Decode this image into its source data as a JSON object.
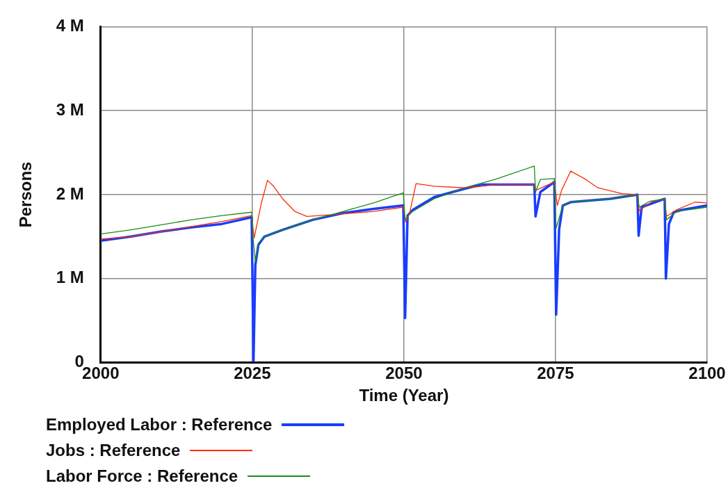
{
  "chart_data": {
    "type": "line",
    "xlabel": "Time (Year)",
    "ylabel": "Persons",
    "xlim": [
      2000,
      2100
    ],
    "xticks": [
      2000,
      2025,
      2050,
      2075,
      2100
    ],
    "ylim": [
      0,
      4000000
    ],
    "yticks": [
      0,
      {
        "value": 1000000,
        "label": "1 M"
      },
      {
        "value": 2000000,
        "label": "2 M"
      },
      {
        "value": 3000000,
        "label": "3 M"
      },
      {
        "value": 4000000,
        "label": "4 M"
      }
    ],
    "grid": true,
    "legend": "bottom",
    "series": [
      {
        "name": "Employed Labor : Reference",
        "color": "#1a3cff",
        "x": [
          2000,
          2005,
          2010,
          2015,
          2020,
          2024.9,
          2025.2,
          2025.5,
          2026,
          2027,
          2030,
          2035,
          2040,
          2045,
          2049.9,
          2050.2,
          2050.6,
          2051.5,
          2055,
          2060,
          2063,
          2071.5,
          2071.7,
          2072.5,
          2074.8,
          2075.1,
          2075.6,
          2076.2,
          2077.5,
          2084,
          2088.5,
          2088.7,
          2089.2,
          2093,
          2093.2,
          2093.7,
          2094.5,
          2096,
          2100
        ],
        "values": [
          1450000,
          1500000,
          1560000,
          1610000,
          1650000,
          1730000,
          20000,
          1160000,
          1400000,
          1500000,
          1580000,
          1700000,
          1780000,
          1830000,
          1870000,
          530000,
          1750000,
          1820000,
          1970000,
          2070000,
          2120000,
          2120000,
          1740000,
          2030000,
          2150000,
          570000,
          1590000,
          1870000,
          1910000,
          1950000,
          2000000,
          1510000,
          1850000,
          1950000,
          1000000,
          1650000,
          1790000,
          1820000,
          1870000
        ]
      },
      {
        "name": "Jobs : Reference",
        "color": "#ff2a00",
        "x": [
          2000,
          2005,
          2010,
          2015,
          2020,
          2024.9,
          2025.3,
          2026.5,
          2027.5,
          2028.5,
          2030,
          2032,
          2034,
          2040,
          2045,
          2049.9,
          2050.3,
          2051,
          2052,
          2055,
          2060,
          2063,
          2065,
          2071.5,
          2071.7,
          2074.8,
          2075.3,
          2076,
          2077.5,
          2080,
          2082,
          2086,
          2088.5,
          2088.8,
          2091,
          2093,
          2093.3,
          2095,
          2098,
          2100
        ],
        "values": [
          1470000,
          1500000,
          1560000,
          1620000,
          1680000,
          1750000,
          1480000,
          1900000,
          2170000,
          2100000,
          1950000,
          1800000,
          1740000,
          1770000,
          1800000,
          1850000,
          1670000,
          1800000,
          2130000,
          2100000,
          2080000,
          2100000,
          2120000,
          2120000,
          2050000,
          2150000,
          1870000,
          2050000,
          2280000,
          2180000,
          2080000,
          2010000,
          2000000,
          1810000,
          1920000,
          1950000,
          1740000,
          1820000,
          1910000,
          1900000
        ]
      },
      {
        "name": "Labor Force : Reference",
        "color": "#1a8c1a",
        "x": [
          2000,
          2005,
          2010,
          2015,
          2020,
          2024.9,
          2025.1,
          2025.5,
          2026,
          2027,
          2030,
          2035,
          2040,
          2045,
          2049.9,
          2050.2,
          2051,
          2055,
          2060,
          2065,
          2071.5,
          2071.7,
          2072.5,
          2074.8,
          2075.1,
          2076.2,
          2077.5,
          2084,
          2088.5,
          2088.8,
          2090.5,
          2093,
          2093.3,
          2095,
          2100
        ],
        "values": [
          1530000,
          1580000,
          1640000,
          1700000,
          1750000,
          1790000,
          1500000,
          1200000,
          1420000,
          1500000,
          1580000,
          1700000,
          1800000,
          1900000,
          2020000,
          1700000,
          1780000,
          1950000,
          2080000,
          2180000,
          2340000,
          2030000,
          2180000,
          2190000,
          1600000,
          1870000,
          1910000,
          1950000,
          2000000,
          1850000,
          1920000,
          1950000,
          1700000,
          1800000,
          1850000
        ]
      }
    ]
  }
}
